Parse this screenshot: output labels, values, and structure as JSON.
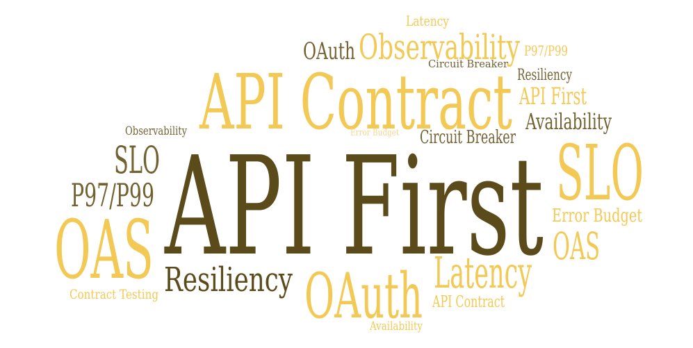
{
  "colors": {
    "background": "#ffffff",
    "dark": "#5b4a1a",
    "olive": "#726232",
    "gold": "#f3c955",
    "pale": "#f6d690"
  },
  "words": [
    {
      "id": "api-first",
      "text": "API First",
      "color": "dark"
    },
    {
      "id": "api-contract-large",
      "text": "API Contract",
      "color": "gold"
    },
    {
      "id": "observability-top",
      "text": "Observability",
      "color": "gold"
    },
    {
      "id": "latency-top",
      "text": "Latency",
      "color": "gold"
    },
    {
      "id": "oauth-top",
      "text": "OAuth",
      "color": "olive"
    },
    {
      "id": "p97-p99-top",
      "text": "P97/P99",
      "color": "gold"
    },
    {
      "id": "circuit-breaker-small",
      "text": "Circuit Breaker",
      "color": "olive"
    },
    {
      "id": "resiliency-small",
      "text": "Resiliency",
      "color": "olive"
    },
    {
      "id": "api-first-small",
      "text": "API First",
      "color": "gold"
    },
    {
      "id": "availability-mid",
      "text": "Availability",
      "color": "olive"
    },
    {
      "id": "observability-left",
      "text": "Observability",
      "color": "olive"
    },
    {
      "id": "error-budget-small",
      "text": "Error Budget",
      "color": "pale"
    },
    {
      "id": "circuit-breaker-mid",
      "text": "Circuit Breaker",
      "color": "olive"
    },
    {
      "id": "slo-left",
      "text": "SLO",
      "color": "olive"
    },
    {
      "id": "slo-right",
      "text": "SLO",
      "color": "gold"
    },
    {
      "id": "p97-p99-left",
      "text": "P97/P99",
      "color": "olive"
    },
    {
      "id": "error-budget-right",
      "text": "Error Budget",
      "color": "gold"
    },
    {
      "id": "oas-left",
      "text": "OAS",
      "color": "gold"
    },
    {
      "id": "oas-right",
      "text": "OAS",
      "color": "gold"
    },
    {
      "id": "resiliency-large",
      "text": "Resiliency",
      "color": "dark"
    },
    {
      "id": "oauth-large",
      "text": "OAuth",
      "color": "gold"
    },
    {
      "id": "latency-large",
      "text": "Latency",
      "color": "gold"
    },
    {
      "id": "api-contract-small",
      "text": "API Contract",
      "color": "gold"
    },
    {
      "id": "contract-testing",
      "text": "Contract Testing",
      "color": "gold"
    },
    {
      "id": "availability-bottom",
      "text": "Availability",
      "color": "gold"
    }
  ]
}
